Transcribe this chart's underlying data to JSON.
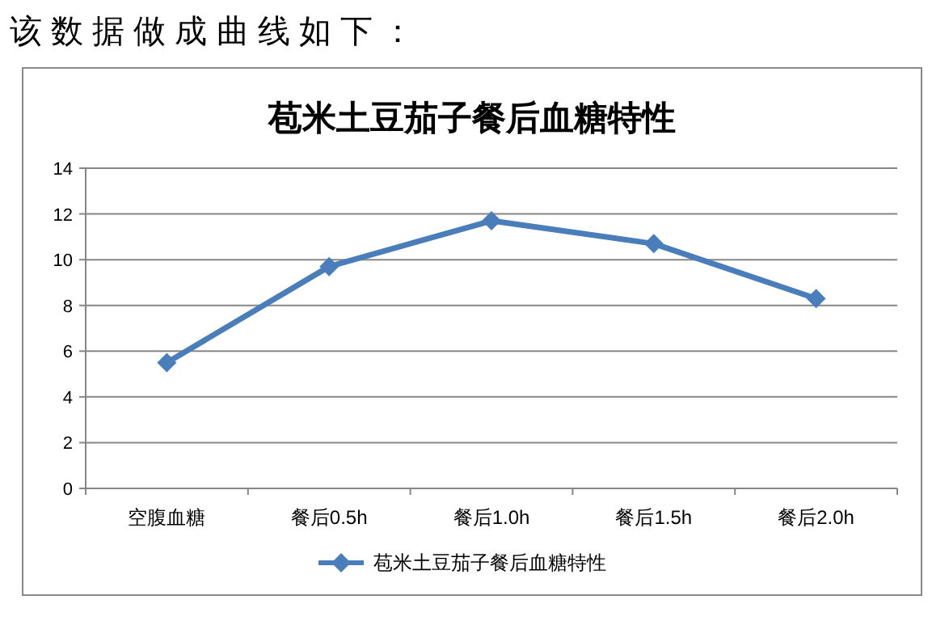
{
  "chart_data": {
    "type": "line",
    "title": "苞米土豆茄子餐后血糖特性",
    "annotations": [
      "该 数 据 做 成 曲 线 如 下 ："
    ],
    "categories": [
      "空腹血糖",
      "餐后0.5h",
      "餐后1.0h",
      "餐后1.5h",
      "餐后2.0h"
    ],
    "series": [
      {
        "name": "苞米土豆茄子餐后血糖特性",
        "color": "#4a7ebb",
        "values": [
          5.5,
          9.7,
          11.7,
          10.7,
          8.3
        ]
      }
    ],
    "ylim": [
      0,
      14
    ],
    "yticks": [
      0,
      2,
      4,
      6,
      8,
      10,
      12,
      14
    ],
    "grid": "y",
    "legend": "bottom",
    "marker": "diamond",
    "line_style": "solid"
  }
}
